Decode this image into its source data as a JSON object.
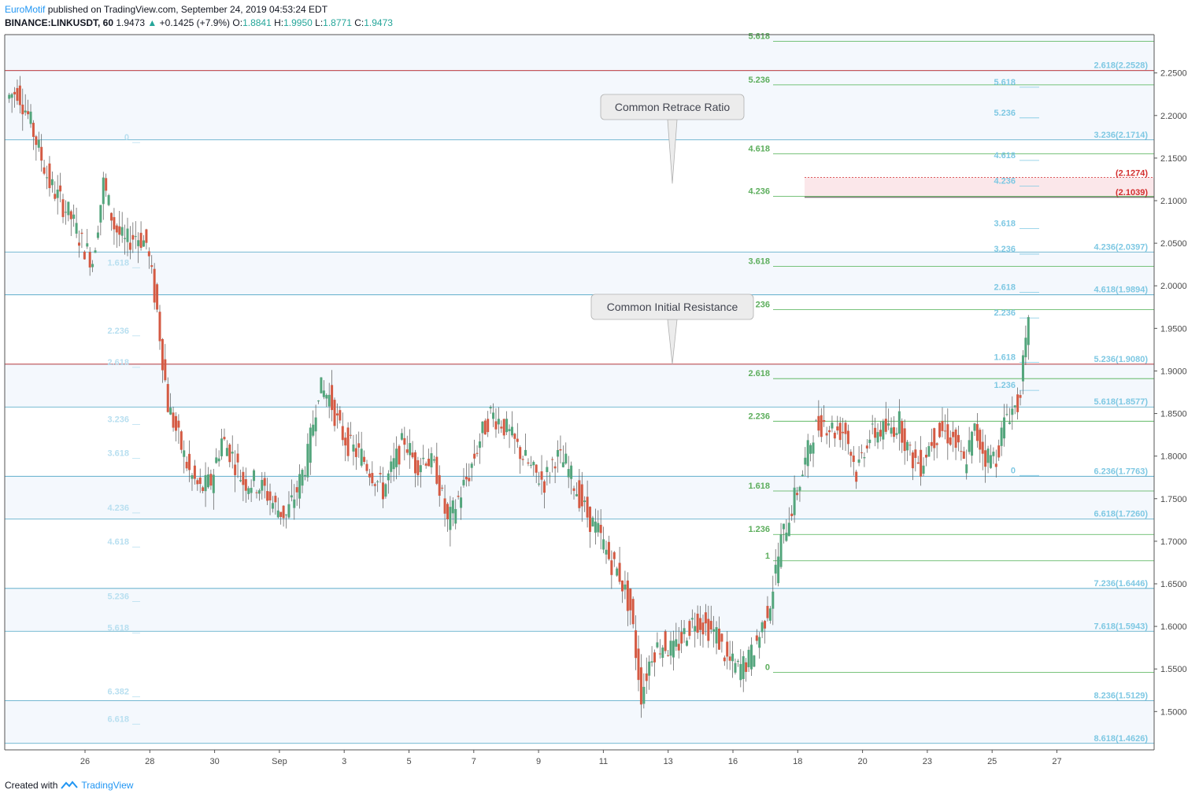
{
  "header": {
    "author": "EuroMotif",
    "published": "published on TradingView.com, September 24, 2019 04:53:24 EDT",
    "symbol": "BINANCE:LINKUSDT, 60",
    "last": "1.9473",
    "change": "+0.1425 (+7.9%)",
    "open_label": "O:",
    "open": "1.8841",
    "high_label": "H:",
    "high": "1.9950",
    "low_label": "L:",
    "low": "1.8771",
    "close_label": "C:",
    "close": "1.9473"
  },
  "footer": {
    "created_with": "Created with",
    "brand": "TradingView"
  },
  "colors": {
    "up": "#53a57c",
    "down": "#d45a43",
    "grid_border": "#555555",
    "blue_fib": "#4aa3c4",
    "green_fib": "#4caf50",
    "red_line": "#d32f2f",
    "blue_label": "#7ec8e3",
    "green_label": "#5dae5d",
    "faint_label": "#b8dff0"
  },
  "chart_data": {
    "type": "candlestick",
    "symbol": "BINANCE:LINKUSDT",
    "interval": "60",
    "ylim": [
      1.455,
      2.295
    ],
    "y_ticks": [
      "2.2500",
      "2.2000",
      "2.1500",
      "2.1000",
      "2.0500",
      "2.0000",
      "1.9500",
      "1.9000",
      "1.8500",
      "1.8000",
      "1.7500",
      "1.7000",
      "1.6500",
      "1.6000",
      "1.5500",
      "1.5000"
    ],
    "x_ticks": [
      "26",
      "28",
      "30",
      "Sep",
      "3",
      "5",
      "7",
      "9",
      "11",
      "13",
      "16",
      "18",
      "20",
      "23",
      "25",
      "27"
    ],
    "price_path": [
      [
        0,
        2.22
      ],
      [
        1,
        2.23
      ],
      [
        2,
        2.2
      ],
      [
        3,
        2.16
      ],
      [
        4,
        2.12
      ],
      [
        5,
        2.1
      ],
      [
        6,
        2.08
      ],
      [
        7,
        2.05
      ],
      [
        8,
        2.03
      ],
      [
        9,
        2.12
      ],
      [
        10,
        2.07
      ],
      [
        11,
        2.05
      ],
      [
        12,
        2.06
      ],
      [
        13,
        2.05
      ],
      [
        14,
        1.97
      ],
      [
        15,
        1.86
      ],
      [
        16,
        1.82
      ],
      [
        17,
        1.78
      ],
      [
        18,
        1.76
      ],
      [
        19,
        1.77
      ],
      [
        20,
        1.82
      ],
      [
        21,
        1.8
      ],
      [
        22,
        1.77
      ],
      [
        23,
        1.77
      ],
      [
        24,
        1.76
      ],
      [
        25,
        1.74
      ],
      [
        26,
        1.73
      ],
      [
        27,
        1.76
      ],
      [
        28,
        1.8
      ],
      [
        29,
        1.88
      ],
      [
        30,
        1.87
      ],
      [
        31,
        1.83
      ],
      [
        32,
        1.81
      ],
      [
        33,
        1.8
      ],
      [
        34,
        1.78
      ],
      [
        35,
        1.76
      ],
      [
        36,
        1.79
      ],
      [
        37,
        1.82
      ],
      [
        38,
        1.79
      ],
      [
        39,
        1.8
      ],
      [
        40,
        1.78
      ],
      [
        41,
        1.72
      ],
      [
        42,
        1.75
      ],
      [
        43,
        1.78
      ],
      [
        44,
        1.82
      ],
      [
        45,
        1.85
      ],
      [
        46,
        1.84
      ],
      [
        47,
        1.82
      ],
      [
        48,
        1.8
      ],
      [
        49,
        1.78
      ],
      [
        50,
        1.77
      ],
      [
        51,
        1.8
      ],
      [
        52,
        1.79
      ],
      [
        53,
        1.76
      ],
      [
        54,
        1.73
      ],
      [
        55,
        1.71
      ],
      [
        56,
        1.68
      ],
      [
        57,
        1.66
      ],
      [
        58,
        1.62
      ],
      [
        59,
        1.52
      ],
      [
        60,
        1.57
      ],
      [
        61,
        1.58
      ],
      [
        62,
        1.57
      ],
      [
        63,
        1.59
      ],
      [
        64,
        1.61
      ],
      [
        65,
        1.6
      ],
      [
        66,
        1.59
      ],
      [
        67,
        1.56
      ],
      [
        68,
        1.55
      ],
      [
        69,
        1.56
      ],
      [
        70,
        1.59
      ],
      [
        71,
        1.63
      ],
      [
        72,
        1.7
      ],
      [
        73,
        1.74
      ],
      [
        74,
        1.78
      ],
      [
        75,
        1.83
      ],
      [
        76,
        1.84
      ],
      [
        77,
        1.83
      ],
      [
        78,
        1.83
      ],
      [
        79,
        1.78
      ],
      [
        80,
        1.82
      ],
      [
        81,
        1.83
      ],
      [
        82,
        1.83
      ],
      [
        83,
        1.84
      ],
      [
        84,
        1.8
      ],
      [
        85,
        1.79
      ],
      [
        86,
        1.82
      ],
      [
        87,
        1.83
      ],
      [
        88,
        1.82
      ],
      [
        89,
        1.79
      ],
      [
        90,
        1.83
      ],
      [
        91,
        1.8
      ],
      [
        92,
        1.8
      ],
      [
        93,
        1.85
      ],
      [
        94,
        1.86
      ],
      [
        95,
        1.95
      ]
    ],
    "fib_levels_right_blue": [
      {
        "label": "2.618(2.2528)",
        "price": 2.2528
      },
      {
        "label": "3.236(2.1714)",
        "price": 2.1714
      },
      {
        "label": "4.236(2.0397)",
        "price": 2.0397
      },
      {
        "label": "4.618(1.9894)",
        "price": 1.9894
      },
      {
        "label": "5.236(1.9080)",
        "price": 1.908
      },
      {
        "label": "5.618(1.8577)",
        "price": 1.8577
      },
      {
        "label": "6.236(1.7763)",
        "price": 1.7763
      },
      {
        "label": "6.618(1.7260)",
        "price": 1.726
      },
      {
        "label": "7.236(1.6446)",
        "price": 1.6446
      },
      {
        "label": "7.618(1.5943)",
        "price": 1.5943
      },
      {
        "label": "8.236(1.5129)",
        "price": 1.5129
      },
      {
        "label": "8.618(1.4626)",
        "price": 1.4626
      }
    ],
    "fib_levels_green": [
      {
        "label": "5.618",
        "price": 2.287
      },
      {
        "label": "5.236",
        "price": 2.236
      },
      {
        "label": "4.618",
        "price": 2.155
      },
      {
        "label": "4.236",
        "price": 2.105
      },
      {
        "label": "3.618",
        "price": 2.023
      },
      {
        "label": "236",
        "price": 1.972
      },
      {
        "label": "2.618",
        "price": 1.891
      },
      {
        "label": "2.236",
        "price": 1.841
      },
      {
        "label": "1.618",
        "price": 1.759
      },
      {
        "label": "1.236",
        "price": 1.708
      },
      {
        "label": "1",
        "price": 1.677
      },
      {
        "label": "0",
        "price": 1.546
      }
    ],
    "fib_levels_small_right": [
      {
        "label": "5.618",
        "price": 2.236
      },
      {
        "label": "5.236",
        "price": 2.2
      },
      {
        "label": "4.618",
        "price": 2.15
      },
      {
        "label": "4.236",
        "price": 2.12
      },
      {
        "label": "3.618",
        "price": 2.07
      },
      {
        "label": "3.236",
        "price": 2.04
      },
      {
        "label": "2.618",
        "price": 1.995
      },
      {
        "label": "2.236",
        "price": 1.965
      },
      {
        "label": "1.618",
        "price": 1.913
      },
      {
        "label": "1.236",
        "price": 1.88
      },
      {
        "label": "0",
        "price": 1.78
      }
    ],
    "fib_levels_left_faint": [
      {
        "label": "0",
        "price": 2.171
      },
      {
        "label": "1.618",
        "price": 2.024
      },
      {
        "label": "2.236",
        "price": 1.944
      },
      {
        "label": "2.618",
        "price": 1.907
      },
      {
        "label": "3.236",
        "price": 1.84
      },
      {
        "label": "3.618",
        "price": 1.8
      },
      {
        "label": "4.236",
        "price": 1.736
      },
      {
        "label": "4.618",
        "price": 1.696
      },
      {
        "label": "5.236",
        "price": 1.632
      },
      {
        "label": "5.618",
        "price": 1.595
      },
      {
        "label": "6.382",
        "price": 1.52
      },
      {
        "label": "6.618",
        "price": 1.488
      }
    ],
    "red_lines": [
      2.2528,
      1.908
    ],
    "zone": {
      "top_label": "(2.1274)",
      "bottom_label": "(2.1039)",
      "top": 2.1274,
      "bottom": 2.1039
    },
    "callouts": [
      {
        "text": "Common Retrace Ratio",
        "price": 2.12
      },
      {
        "text": "Common Initial Resistance",
        "price": 1.908
      }
    ]
  }
}
